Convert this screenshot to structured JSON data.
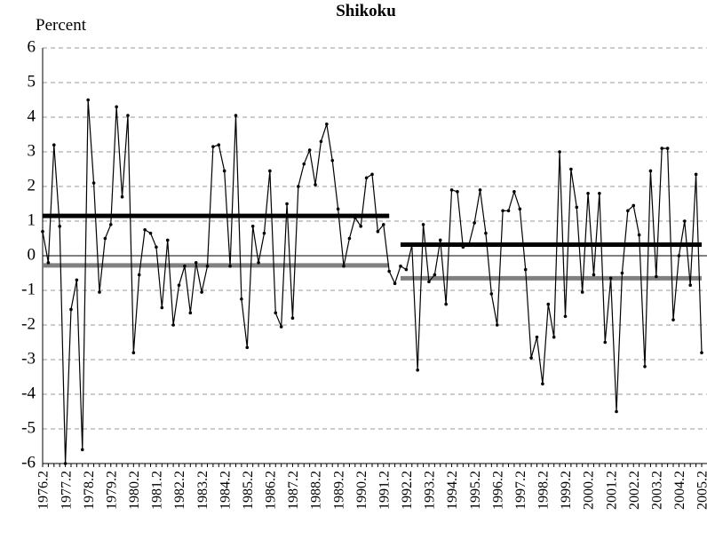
{
  "chart_data": {
    "type": "line",
    "title": "Shikoku",
    "ylabel": "Percent",
    "ylim": [
      -6,
      6
    ],
    "yticks": [
      -6,
      -5,
      -4,
      -3,
      -2,
      -1,
      0,
      1,
      2,
      3,
      4,
      5,
      6
    ],
    "grid": true,
    "categories": [
      "1976.2",
      null,
      null,
      null,
      "1977.2",
      null,
      null,
      null,
      "1978.2",
      null,
      null,
      null,
      "1979.2",
      null,
      null,
      null,
      "1980.2",
      null,
      null,
      null,
      "1981.2",
      null,
      null,
      null,
      "1982.2",
      null,
      null,
      null,
      "1983.2",
      null,
      null,
      null,
      "1984.2",
      null,
      null,
      null,
      "1985.2",
      null,
      null,
      null,
      "1986.2",
      null,
      null,
      null,
      "1987.2",
      null,
      null,
      null,
      "1988.2",
      null,
      null,
      null,
      "1989.2",
      null,
      null,
      null,
      "1990.2",
      null,
      null,
      null,
      "1991.2",
      null,
      null,
      null,
      "1992.2",
      null,
      null,
      null,
      "1993.2",
      null,
      null,
      null,
      "1994.2",
      null,
      null,
      null,
      "1995.2",
      null,
      null,
      null,
      "1996.2",
      null,
      null,
      null,
      "1997.2",
      null,
      null,
      null,
      "1998.2",
      null,
      null,
      null,
      "1999.2",
      null,
      null,
      null,
      "2000.2",
      null,
      null,
      null,
      "2001.2",
      null,
      null,
      null,
      "2002.2",
      null,
      null,
      null,
      "2003.2",
      null,
      null,
      null,
      "2004.2",
      null,
      null,
      null,
      "2005.2"
    ],
    "series": [
      {
        "color": "#000000",
        "markers": true,
        "values": [
          0.7,
          -0.2,
          3.2,
          0.85,
          -6,
          -1.55,
          -0.7,
          -5.6,
          4.5,
          2.1,
          -1.05,
          0.5,
          0.9,
          4.3,
          1.7,
          4.05,
          -2.8,
          -0.55,
          0.75,
          0.65,
          0.25,
          -1.5,
          0.45,
          -2.0,
          -0.85,
          -0.3,
          -1.65,
          -0.2,
          -1.05,
          -0.3,
          3.15,
          3.2,
          2.45,
          -0.3,
          4.05,
          -1.25,
          -2.65,
          0.85,
          -0.2,
          0.65,
          2.45,
          -1.65,
          -2.05,
          1.5,
          -1.8,
          2.0,
          2.65,
          3.05,
          2.05,
          3.3,
          3.8,
          2.75,
          1.35,
          -0.3,
          0.5,
          1.1,
          0.85,
          2.25,
          2.35,
          0.7,
          0.9,
          -0.45,
          -0.8,
          -0.3,
          -0.4,
          0.3,
          -3.3,
          0.9,
          -0.75,
          -0.55,
          0.45,
          -1.4,
          1.9,
          1.85,
          0.25,
          0.3,
          0.95,
          1.9,
          0.65,
          -1.1,
          -2.0,
          1.3,
          1.3,
          1.85,
          1.35,
          -0.4,
          -2.95,
          -2.35,
          -3.7,
          -1.4,
          -2.35,
          3.0,
          -1.75,
          2.5,
          1.4,
          -1.05,
          1.8,
          -0.55,
          1.8,
          -2.5,
          -0.65,
          -4.5,
          -0.5,
          1.3,
          1.45,
          0.6,
          -3.2,
          2.45,
          -0.6,
          3.1,
          3.1,
          -1.85,
          0.0,
          1.0,
          -0.85,
          2.35,
          -2.8
        ]
      },
      {
        "color": "#000000",
        "markers": false,
        "values": [
          1.15,
          1.15,
          1.15,
          1.15,
          1.15,
          1.15,
          1.15,
          1.15,
          1.15,
          1.15,
          1.15,
          1.15,
          1.15,
          1.15,
          1.15,
          1.15,
          1.15,
          1.15,
          1.15,
          1.15,
          1.15,
          1.15,
          1.15,
          1.15,
          1.15,
          1.15,
          1.15,
          1.15,
          1.15,
          1.15,
          1.15,
          1.15,
          1.15,
          1.15,
          1.15,
          1.15,
          1.15,
          1.15,
          1.15,
          1.15,
          1.15,
          1.15,
          1.15,
          1.15,
          1.15,
          1.15,
          1.15,
          1.15,
          1.15,
          1.15,
          1.15,
          1.15,
          1.15,
          1.15,
          1.15,
          1.15,
          1.15,
          1.15,
          1.15,
          1.15,
          1.15,
          1.15,
          null,
          0.32,
          0.32,
          0.32,
          0.32,
          0.32,
          0.32,
          0.32,
          0.32,
          0.32,
          0.32,
          0.32,
          0.32,
          0.32,
          0.32,
          0.32,
          0.32,
          0.32,
          0.32,
          0.32,
          0.32,
          0.32,
          0.32,
          0.32,
          0.32,
          0.32,
          0.32,
          0.32,
          0.32,
          0.32,
          0.32,
          0.32,
          0.32,
          0.32,
          0.32,
          0.32,
          0.32,
          0.32,
          0.32,
          0.32,
          0.32,
          0.32,
          0.32,
          0.32,
          0.32,
          0.32,
          0.32,
          0.32,
          0.32,
          0.32,
          0.32,
          0.32,
          0.32,
          0.32,
          0.32
        ]
      },
      {
        "color": "#808080",
        "markers": false,
        "values": [
          -0.28,
          -0.28,
          -0.28,
          -0.28,
          -0.28,
          -0.28,
          -0.28,
          -0.28,
          -0.28,
          -0.28,
          -0.28,
          -0.28,
          -0.28,
          -0.28,
          -0.28,
          -0.28,
          -0.28,
          -0.28,
          -0.28,
          -0.28,
          -0.28,
          -0.28,
          -0.28,
          -0.28,
          -0.28,
          -0.28,
          -0.28,
          -0.28,
          -0.28,
          -0.28,
          -0.28,
          -0.28,
          -0.28,
          -0.28,
          -0.28,
          -0.28,
          -0.28,
          -0.28,
          -0.28,
          -0.28,
          -0.28,
          -0.28,
          -0.28,
          -0.28,
          -0.28,
          -0.28,
          -0.28,
          -0.28,
          -0.28,
          -0.28,
          -0.28,
          -0.28,
          -0.28,
          -0.28,
          -0.28,
          -0.28,
          -0.28,
          -0.28,
          -0.28,
          -0.28,
          -0.28,
          -0.28,
          null,
          -0.65,
          -0.65,
          -0.65,
          -0.65,
          -0.65,
          -0.65,
          -0.65,
          -0.65,
          -0.65,
          -0.65,
          -0.65,
          -0.65,
          -0.65,
          -0.65,
          -0.65,
          -0.65,
          -0.65,
          -0.65,
          -0.65,
          -0.65,
          -0.65,
          -0.65,
          -0.65,
          -0.65,
          -0.65,
          -0.65,
          -0.65,
          -0.65,
          -0.65,
          -0.65,
          -0.65,
          -0.65,
          -0.65,
          -0.65,
          -0.65,
          -0.65,
          -0.65,
          -0.65,
          -0.65,
          -0.65,
          -0.65,
          -0.65,
          -0.65,
          -0.65,
          -0.65,
          -0.65,
          -0.65,
          -0.65,
          -0.65,
          -0.65,
          -0.65,
          -0.65,
          -0.65,
          -0.65
        ]
      }
    ]
  }
}
